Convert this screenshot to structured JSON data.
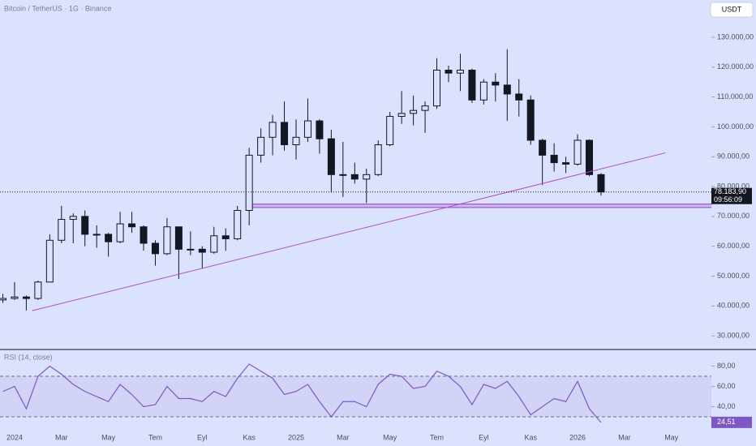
{
  "title": "Bitcoin / TetherUS · 1G · Binance",
  "currency_button": "USDT",
  "chart_data": [
    {
      "type": "candlestick",
      "categories": [
        null,
        "2024",
        null,
        null,
        null,
        "Mar",
        null,
        null,
        null,
        "May",
        null,
        null,
        null,
        "Tem",
        null,
        null,
        null,
        "Eyl",
        null,
        null,
        null,
        "Kas",
        null,
        null,
        null,
        "2025",
        null,
        null,
        null,
        "Mar",
        null,
        null,
        null,
        "May",
        null,
        null,
        null,
        "Tem",
        null,
        null,
        null,
        "Eyl",
        null,
        null,
        null,
        "Kas",
        null,
        null,
        null,
        "2026",
        null,
        null,
        null,
        "Mar",
        null,
        null,
        null,
        "May"
      ],
      "open": [
        42000,
        42500,
        43000,
        42500,
        48000,
        62000,
        69000,
        70000,
        64000,
        64000,
        61500,
        67500,
        66500,
        61000,
        57500,
        66500,
        59000,
        59000,
        58000,
        63500,
        62500,
        72000,
        90500,
        96500,
        101500,
        94000,
        96500,
        102000,
        96000,
        84000,
        84000,
        82500,
        84000,
        94000,
        103500,
        104500,
        105500,
        107000,
        119000,
        118000,
        119000,
        109000,
        115000,
        114000,
        111000,
        109000,
        95500,
        90500,
        88000,
        87500,
        95500,
        84000,
        null,
        null,
        null,
        null,
        null,
        null
      ],
      "high": [
        44000,
        48000,
        43500,
        48500,
        64000,
        73500,
        71000,
        72000,
        67000,
        64500,
        71500,
        71500,
        67000,
        62000,
        69500,
        66500,
        65000,
        60000,
        66500,
        66000,
        73500,
        93000,
        99500,
        104000,
        108500,
        102500,
        109500,
        102500,
        99000,
        95000,
        88000,
        86000,
        95500,
        105000,
        112000,
        110500,
        108500,
        123000,
        120500,
        124500,
        119500,
        116000,
        118000,
        126000,
        116000,
        110500,
        96000,
        94500,
        90000,
        97500,
        95800,
        84500,
        null,
        null,
        null,
        null,
        null,
        null
      ],
      "low": [
        41000,
        42000,
        38500,
        42000,
        48000,
        61000,
        61000,
        60000,
        59500,
        56500,
        61000,
        64500,
        58500,
        53500,
        57000,
        49000,
        57000,
        52500,
        57500,
        58500,
        62000,
        67000,
        88000,
        90500,
        92000,
        89000,
        95000,
        91000,
        78000,
        76500,
        81000,
        74500,
        83500,
        93500,
        101000,
        100500,
        98000,
        106000,
        115000,
        112000,
        108000,
        107500,
        108500,
        102000,
        103500,
        94000,
        80500,
        85000,
        84500,
        87000,
        83500,
        77000,
        null,
        null,
        null,
        null,
        null,
        null
      ],
      "close": [
        42500,
        43000,
        42500,
        48000,
        62000,
        69000,
        70000,
        64000,
        64000,
        61500,
        67500,
        66500,
        61000,
        57500,
        66500,
        59000,
        59000,
        58000,
        63500,
        62500,
        72000,
        90500,
        96500,
        101500,
        94000,
        96500,
        102000,
        96000,
        84000,
        84000,
        82500,
        84000,
        94000,
        103500,
        104500,
        105500,
        107000,
        119000,
        118000,
        119000,
        109000,
        115000,
        114000,
        111000,
        109000,
        95500,
        90500,
        88000,
        87500,
        95500,
        84000,
        78183.9,
        null,
        null,
        null,
        null,
        null,
        null
      ],
      "color": "#131722",
      "ylim": [
        25400,
        142500
      ],
      "yticks": [
        {
          "value": 30000,
          "label": "30.000,00"
        },
        {
          "value": 40000,
          "label": "40.000,00"
        },
        {
          "value": 50000,
          "label": "50.000,00"
        },
        {
          "value": 60000,
          "label": "60.000,00"
        },
        {
          "value": 70000,
          "label": "70.000,00"
        },
        {
          "value": 80000,
          "label": "80.000,00"
        },
        {
          "value": 90000,
          "label": "90.000,00"
        },
        {
          "value": 100000,
          "label": "100.000,00"
        },
        {
          "value": 110000,
          "label": "110.000,00"
        },
        {
          "value": 120000,
          "label": "120.000,00"
        },
        {
          "value": 130000,
          "label": "130.000,00"
        }
      ],
      "price_marker": {
        "value": 78183.9,
        "label": "78.183,90"
      },
      "countdown": "09:56:09",
      "trendline": {
        "color": "#b04fc0",
        "x": [
          2.5,
          56.5
        ],
        "values": [
          38400,
          91300
        ]
      },
      "zone": {
        "color": "#9c4fd0",
        "from": 20.8,
        "values": [
          74100,
          73000
        ]
      }
    },
    {
      "type": "line",
      "name": "RSI (14, close)",
      "values": [
        55,
        60,
        38,
        70,
        80,
        72,
        62,
        55,
        50,
        45,
        62,
        52,
        40,
        42,
        60,
        48,
        48,
        45,
        55,
        50,
        68,
        82,
        75,
        68,
        52,
        55,
        62,
        45,
        30,
        45,
        45,
        40,
        62,
        72,
        70,
        58,
        60,
        75,
        70,
        60,
        42,
        62,
        58,
        65,
        50,
        32,
        40,
        48,
        45,
        65,
        38,
        24.51,
        null,
        null,
        null,
        null,
        null,
        null
      ],
      "value_labels": [
        null,
        null,
        null,
        null,
        null,
        null,
        null,
        null,
        null,
        null,
        null,
        null,
        null,
        null,
        null,
        null,
        null,
        null,
        null,
        null,
        null,
        null,
        null,
        null,
        null,
        null,
        null,
        null,
        null,
        null,
        null,
        null,
        null,
        null,
        null,
        null,
        null,
        null,
        null,
        null,
        null,
        null,
        null,
        null,
        null,
        null,
        null,
        null,
        null,
        null,
        null,
        "24,51",
        null,
        null,
        null,
        null,
        null,
        null
      ],
      "color": "#7e57c2",
      "ylim": [
        22,
        95.6
      ],
      "yticks": [
        {
          "value": 40,
          "label": "40,00"
        },
        {
          "value": 60,
          "label": "60,00"
        },
        {
          "value": 80,
          "label": "80,00"
        }
      ],
      "bands": [
        70,
        30
      ]
    }
  ]
}
